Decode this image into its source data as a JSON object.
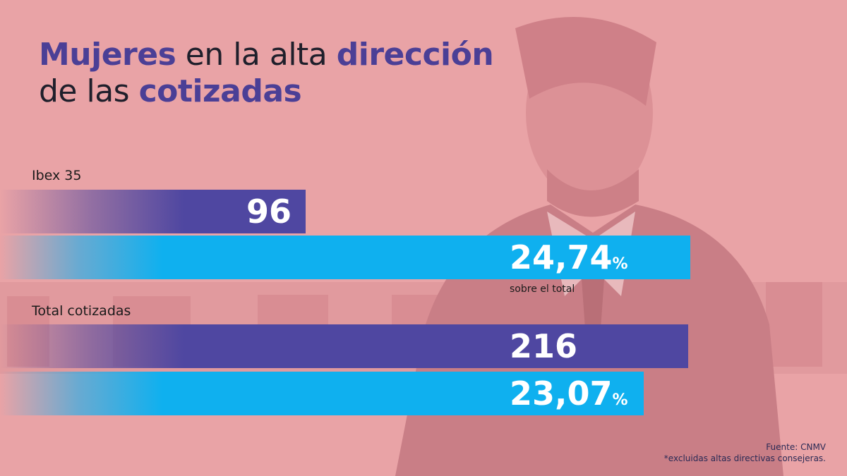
{
  "title": {
    "line1": [
      {
        "text": "Mujeres",
        "highlight": true
      },
      {
        "text": " en la alta ",
        "highlight": false
      },
      {
        "text": "dirección",
        "highlight": true
      }
    ],
    "line2": [
      {
        "text": "de las ",
        "highlight": false
      },
      {
        "text": "cotizadas",
        "highlight": true
      }
    ]
  },
  "chart_data": {
    "type": "bar",
    "groups": [
      {
        "label": "Ibex 35",
        "count": 96,
        "count_label": "96",
        "percent": 24.74,
        "percent_label": "24,74",
        "percent_note": "sobre el total"
      },
      {
        "label": "Total cotizadas",
        "count": 216,
        "count_label": "216",
        "percent": 23.07,
        "percent_label": "23,07",
        "percent_note": ""
      }
    ],
    "percent_unit": "%",
    "colors": {
      "count": "#4f47a1",
      "percent": "#0fb0ef",
      "title_highlight": "#4b3f96",
      "background": "#e9a3a6"
    }
  },
  "footer": {
    "source": "Fuente: CNMV",
    "note": "*excluidas altas directivas consejeras."
  }
}
